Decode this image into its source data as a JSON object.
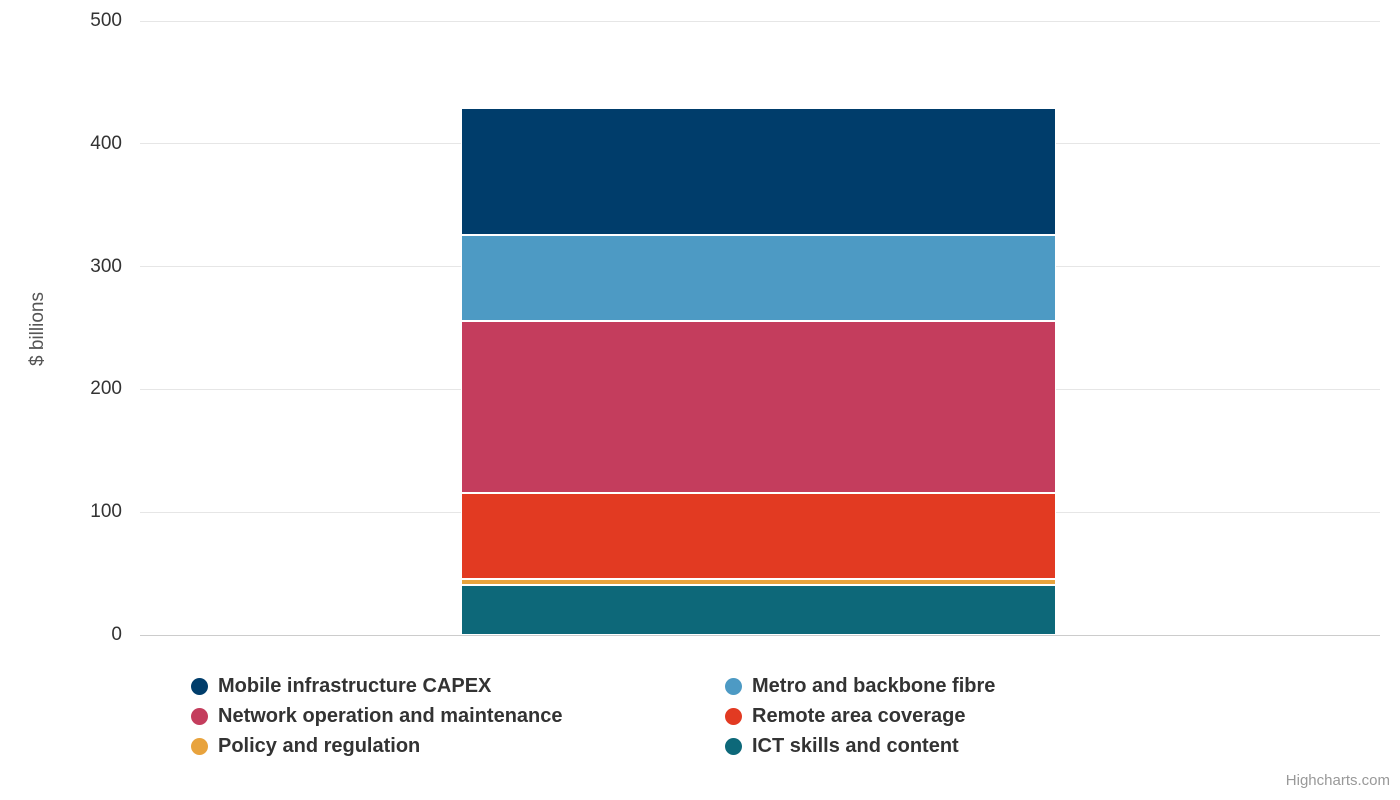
{
  "chart_data": {
    "type": "bar",
    "stacked": true,
    "title": "",
    "xlabel": "",
    "ylabel": "$ billions",
    "ylim": [
      0,
      500
    ],
    "yticks": [
      0,
      100,
      200,
      300,
      400,
      500
    ],
    "grid": true,
    "legend_position": "bottom",
    "categories": [
      ""
    ],
    "series": [
      {
        "name": "Mobile infrastructure CAPEX",
        "color": "#003D6B",
        "values": [
          103
        ]
      },
      {
        "name": "Metro and backbone fibre",
        "color": "#4D9AC4",
        "values": [
          70
        ]
      },
      {
        "name": "Network operation and maintenance",
        "color": "#C43D5D",
        "values": [
          140
        ]
      },
      {
        "name": "Remote area coverage",
        "color": "#E23A22",
        "values": [
          70
        ]
      },
      {
        "name": "Policy and regulation",
        "color": "#E8A33D",
        "values": [
          5
        ]
      },
      {
        "name": "ICT skills and content",
        "color": "#0D6879",
        "values": [
          41
        ]
      }
    ],
    "stack_order_top_to_bottom": [
      "Mobile infrastructure CAPEX",
      "Metro and backbone fibre",
      "Network operation and maintenance",
      "Remote area coverage",
      "Policy and regulation",
      "ICT skills and content"
    ],
    "colors": {
      "gridline": "#e6e6e6",
      "axis_line": "#cccccc",
      "tick_label": "#333333",
      "axis_title": "#555555",
      "legend_text": "#333333",
      "credit_text": "#999999"
    }
  },
  "credit": {
    "label": "Highcharts.com"
  }
}
